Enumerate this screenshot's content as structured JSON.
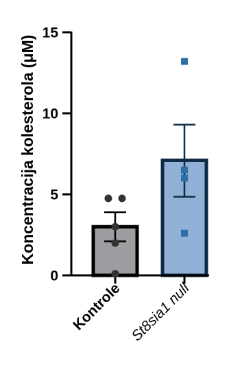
{
  "chart_data": {
    "type": "bar",
    "ylabel": "Koncentracija kolesterola (μM)",
    "ylim": [
      0,
      15
    ],
    "yticks": [
      "0",
      "5",
      "10",
      "15"
    ],
    "categories": [
      "Kontrole",
      "St8sia1 null"
    ],
    "category_styles": [
      "bold",
      "italic"
    ],
    "bars": [
      {
        "category": "Kontrole",
        "mean": 3.0,
        "sem_low": 2.1,
        "sem_high": 3.9,
        "fill": "#9e9ea2",
        "stroke": "#000000",
        "marker": "circle",
        "marker_color": "#333333",
        "points": [
          4.75,
          4.75,
          3.0,
          2.0,
          0.1
        ]
      },
      {
        "category": "St8sia1 null",
        "mean": 7.1,
        "sem_low": 4.85,
        "sem_high": 9.3,
        "fill": "#91b0d6",
        "stroke": "#0e2a44",
        "marker": "square",
        "marker_color": "#2e6ea6",
        "points": [
          13.2,
          6.5,
          6.0,
          2.6
        ]
      }
    ],
    "grid": false,
    "legend": "none"
  }
}
